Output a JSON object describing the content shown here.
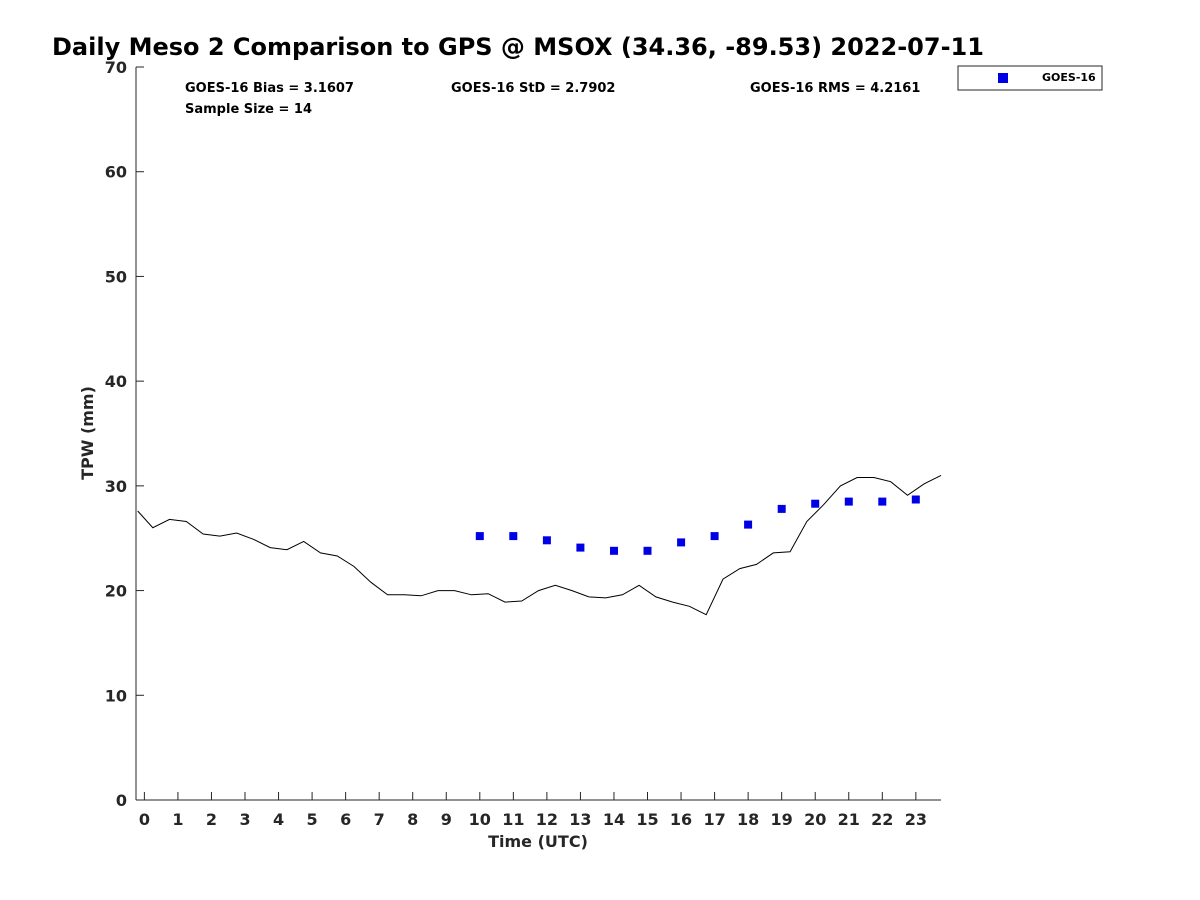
{
  "chart_data": {
    "type": "scatter",
    "title": "Daily Meso 2 Comparison to GPS @ MSOX (34.36, -89.53) 2022-07-11",
    "xlabel": "Time (UTC)",
    "ylabel": "TPW (mm)",
    "xlim": [
      -0.25,
      23.75
    ],
    "ylim": [
      0,
      70
    ],
    "x_ticks": [
      "0",
      "1",
      "2",
      "3",
      "4",
      "5",
      "6",
      "7",
      "8",
      "9",
      "10",
      "11",
      "12",
      "13",
      "14",
      "15",
      "16",
      "17",
      "18",
      "19",
      "20",
      "21",
      "22",
      "23"
    ],
    "y_ticks": [
      "0",
      "10",
      "20",
      "30",
      "40",
      "50",
      "60",
      "70"
    ],
    "grid": false,
    "legend_position": "outside-top-right",
    "stats": {
      "bias": "GOES-16 Bias = 3.1607",
      "std": "GOES-16 StD = 2.7902",
      "rms": "GOES-16 RMS = 4.2161",
      "sample": "Sample Size = 14"
    },
    "series": [
      {
        "kind": "scatter",
        "name": "GOES-16",
        "color": "#0000e6",
        "marker": "square",
        "x": [
          10,
          11,
          12,
          13,
          14,
          15,
          16,
          17,
          18,
          19,
          20,
          21,
          22,
          23
        ],
        "y": [
          25.2,
          25.2,
          24.8,
          24.1,
          23.8,
          23.8,
          24.6,
          25.2,
          26.3,
          27.8,
          28.3,
          28.5,
          28.5,
          28.7
        ]
      },
      {
        "kind": "line",
        "color": "#000000",
        "x": [
          -0.2,
          0.25,
          0.75,
          1.25,
          1.75,
          2.25,
          2.75,
          3.25,
          3.75,
          4.25,
          4.75,
          5.25,
          5.75,
          6.25,
          6.75,
          7.25,
          7.75,
          8.25,
          8.75,
          9.25,
          9.75,
          10.25,
          10.75,
          11.25,
          11.75,
          12.25,
          12.75,
          13.25,
          13.75,
          14.25,
          14.75,
          15.25,
          15.75,
          16.25,
          16.75,
          17.25,
          17.75,
          18.25,
          18.75,
          19.25,
          19.75,
          20.25,
          20.75,
          21.25,
          21.75,
          22.25,
          22.75,
          23.25,
          23.75
        ],
        "y": [
          27.6,
          26.0,
          26.8,
          26.6,
          25.4,
          25.2,
          25.5,
          24.9,
          24.1,
          23.9,
          24.7,
          23.6,
          23.3,
          22.3,
          20.8,
          19.6,
          19.6,
          19.5,
          20.0,
          20.0,
          19.6,
          19.7,
          18.9,
          19.0,
          20.0,
          20.5,
          20.0,
          19.4,
          19.3,
          19.6,
          20.5,
          19.4,
          18.9,
          18.5,
          17.7,
          21.1,
          22.1,
          22.5,
          23.6,
          23.7,
          26.6,
          28.2,
          30.0,
          30.8,
          30.8,
          30.4,
          29.1,
          30.2,
          31.0
        ]
      }
    ]
  }
}
